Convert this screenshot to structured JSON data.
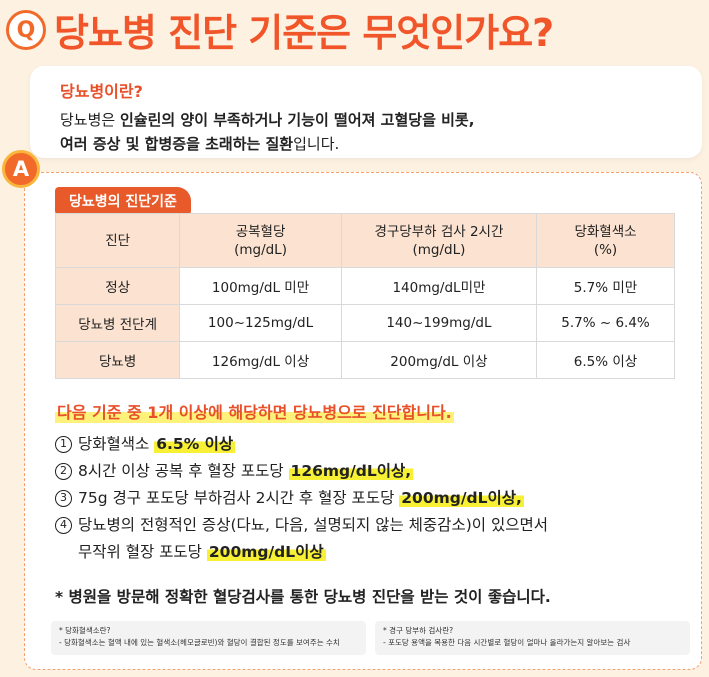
{
  "question": {
    "badge": "Q",
    "title": "당뇨병 진단 기준은 무엇인가요?"
  },
  "intro": {
    "subtitle": "당뇨병이란?",
    "line1_a": "당뇨병은 ",
    "line1_b": "인슐린의 양이 부족하거나 기능이 떨어져 고혈당을 비롯,",
    "line2_a": "여러 증상 및 합병증을 초래하는 질환",
    "line2_b": "입니다."
  },
  "answer": {
    "badge": "A",
    "tag": "당뇨병의 진단기준",
    "table": {
      "headers": [
        "진단",
        "공복혈당\n(mg/dL)",
        "경구당부하 검사 2시간\n(mg/dL)",
        "당화혈색소\n(%)"
      ],
      "rows": [
        [
          "정상",
          "100mg/dL 미만",
          "140mg/dL미만",
          "5.7% 미만"
        ],
        [
          "당뇨병 전단계",
          "100~125mg/dL",
          "140~199mg/dL",
          "5.7% ~ 6.4%"
        ],
        [
          "당뇨병",
          "126mg/dL 이상",
          "200mg/dL 이상",
          "6.5% 이상"
        ]
      ]
    },
    "headline": "다음 기준 중 1개 이상에 해당하면 당뇨병으로 진단합니다.",
    "criteria": [
      {
        "num": "1",
        "text": "당화혈색소 ",
        "highlight": "6.5% 이상"
      },
      {
        "num": "2",
        "text": "8시간 이상 공복 후 혈장 포도당 ",
        "highlight": "126mg/dL이상,"
      },
      {
        "num": "3",
        "text": "75g 경구 포도당 부하검사 2시간 후 혈장 포도당 ",
        "highlight": "200mg/dL이상,"
      },
      {
        "num": "4",
        "text": "당뇨병의 전형적인 증상(다뇨, 다음, 설명되지 않는 체중감소)이 있으면서",
        "text2": "무작위 혈장 포도당 ",
        "highlight": "200mg/dL이상"
      }
    ],
    "note": "* 병원을 방문해 정확한 혈당검사를 통한 당뇨병 진단을 받는 것이 좋습니다.",
    "footnotes": [
      {
        "q": "* 당화혈색소란?",
        "a": "- 당화혈색소는 혈액 내에 있는 혈색소(헤모글로빈)와 혈당이 결합된 정도를 보여주는 수치"
      },
      {
        "q": "* 경구 당부하 검사란?",
        "a": "- 포도당 용액을 복용한 다음 시간별로 혈당이 얼마나 올라가는지 알아보는 검사"
      }
    ]
  }
}
